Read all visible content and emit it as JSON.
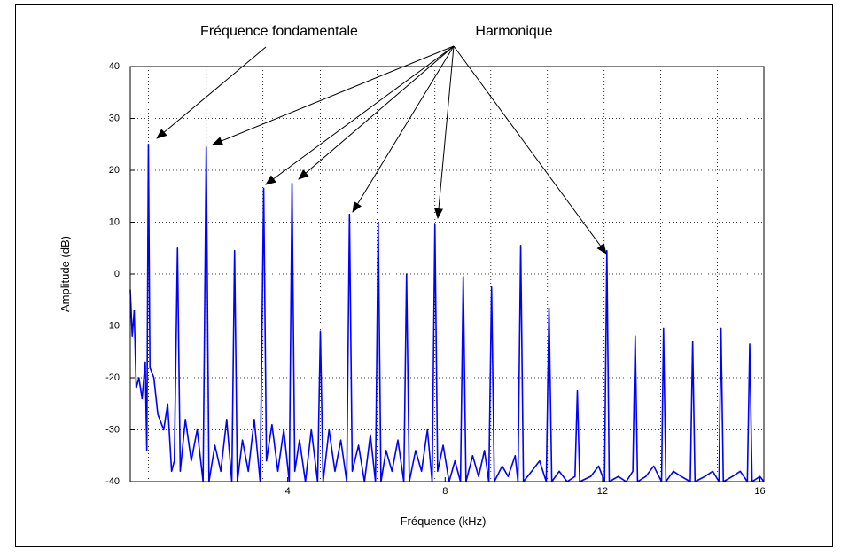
{
  "chart_data": {
    "type": "line",
    "xlabel": "Fréquence (kHz)",
    "ylabel": "Amplitude (dB)",
    "annotations": [
      "Fréquence fondamentale",
      "Harmonique"
    ],
    "color": "#0000ff",
    "xlim": [
      0,
      16.1
    ],
    "ylim": [
      -40,
      40
    ],
    "xticks": [
      4,
      8,
      12,
      16
    ],
    "yticks": [
      -40,
      -30,
      -20,
      -10,
      0,
      10,
      20,
      30,
      40
    ],
    "xgrid": [
      0.46,
      1.93,
      3.37,
      4.83,
      6.27,
      7.74,
      9.16,
      10.6,
      12.04,
      13.48,
      14.92
    ],
    "grid": true,
    "x": [
      0,
      0.05,
      0.1,
      0.15,
      0.22,
      0.3,
      0.38,
      0.42,
      0.46,
      0.5,
      0.6,
      0.7,
      0.85,
      0.95,
      1.05,
      1.12,
      1.2,
      1.27,
      1.4,
      1.55,
      1.7,
      1.85,
      1.93,
      2.0,
      2.15,
      2.3,
      2.45,
      2.58,
      2.65,
      2.72,
      2.85,
      3.0,
      3.15,
      3.3,
      3.39,
      3.46,
      3.6,
      3.75,
      3.9,
      4.04,
      4.11,
      4.18,
      4.3,
      4.45,
      4.6,
      4.76,
      4.83,
      4.9,
      5.05,
      5.2,
      5.35,
      5.5,
      5.57,
      5.64,
      5.8,
      5.95,
      6.1,
      6.23,
      6.3,
      6.37,
      6.5,
      6.65,
      6.8,
      6.95,
      7.02,
      7.09,
      7.25,
      7.4,
      7.55,
      7.67,
      7.74,
      7.81,
      7.95,
      8.1,
      8.25,
      8.39,
      8.46,
      8.53,
      8.7,
      8.85,
      9.0,
      9.11,
      9.18,
      9.25,
      9.45,
      9.6,
      9.78,
      9.85,
      9.92,
      9.99,
      10.2,
      10.4,
      10.57,
      10.64,
      10.71,
      10.9,
      11.1,
      11.3,
      11.36,
      11.42,
      11.7,
      11.9,
      12.05,
      12.11,
      12.17,
      12.4,
      12.6,
      12.77,
      12.83,
      12.89,
      13.1,
      13.3,
      13.5,
      13.55,
      13.61,
      13.8,
      14.0,
      14.23,
      14.29,
      14.35,
      14.6,
      14.8,
      14.96,
      15.01,
      15.07,
      15.3,
      15.5,
      15.68,
      15.74,
      15.8,
      16.0,
      16.1
    ],
    "values": [
      -3,
      -12,
      -7,
      -22,
      -20,
      -24,
      -17,
      -34,
      25,
      -18,
      -20,
      -27,
      -30,
      -25,
      -38,
      -36,
      5,
      -38,
      -28,
      -36,
      -30,
      -40,
      24.5,
      -40,
      -33,
      -38,
      -28,
      -40,
      4.5,
      -40,
      -32,
      -38,
      -28,
      -40,
      16.5,
      -36,
      -29,
      -38,
      -30,
      -40,
      17.5,
      -38,
      -32,
      -40,
      -30,
      -40,
      -11,
      -40,
      -30,
      -38,
      -32,
      -40,
      11.5,
      -38,
      -33,
      -40,
      -31,
      -40,
      10,
      -40,
      -34,
      -38,
      -32,
      -40,
      0,
      -40,
      -34,
      -38,
      -30,
      -40,
      9.5,
      -38,
      -33,
      -40,
      -36,
      -40,
      -0.5,
      -40,
      -35,
      -39,
      -34,
      -40,
      -2.5,
      -40,
      -37,
      -39,
      -35,
      -40,
      5.5,
      -40,
      -38,
      -36,
      -40,
      -6.5,
      -40,
      -38,
      -40,
      -39,
      -22.5,
      -40,
      -39,
      -37,
      -40,
      4.5,
      -40,
      -39,
      -40,
      -38,
      -12,
      -40,
      -39,
      -37,
      -40,
      -10.5,
      -40,
      -38,
      -39,
      -40,
      -13,
      -40,
      -39,
      -38,
      -40,
      -10.5,
      -40,
      -39,
      -38,
      -40,
      -13.5,
      -40,
      -39,
      -40
    ]
  }
}
